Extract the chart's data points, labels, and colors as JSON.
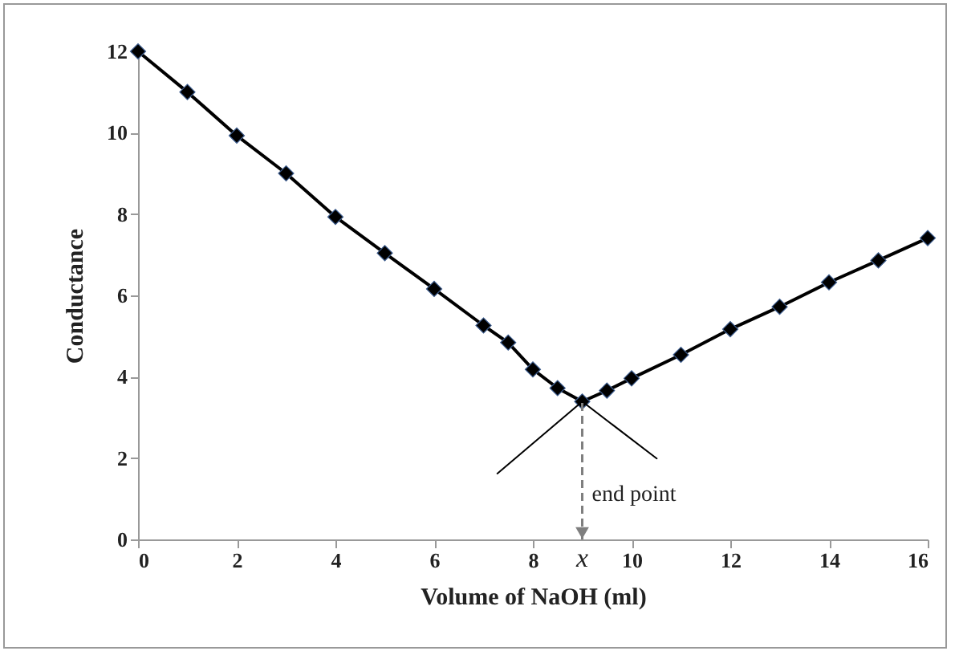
{
  "chart_data": {
    "type": "line",
    "xlabel": "Volume of NaOH (ml)",
    "ylabel": "Conductance",
    "xlim": [
      0,
      16
    ],
    "xticks": [
      0,
      2,
      4,
      6,
      8,
      10,
      12,
      14,
      16
    ],
    "ylim": [
      0,
      12
    ],
    "yticks": [
      0,
      2,
      4,
      6,
      8,
      10,
      12
    ],
    "grid": false,
    "series": [
      {
        "color": "#000000",
        "marker": "diamond",
        "x": [
          0,
          1,
          2,
          3,
          4,
          5,
          6,
          7,
          7.5,
          8,
          8.5,
          9,
          9.5,
          10,
          11,
          12,
          13,
          14,
          15,
          16
        ],
        "values": [
          12.0,
          11.0,
          9.93,
          9.0,
          7.93,
          7.04,
          6.16,
          5.26,
          4.84,
          4.18,
          3.72,
          3.39,
          3.66,
          3.96,
          4.54,
          5.17,
          5.72,
          6.32,
          6.86,
          7.41
        ]
      },
      {
        "color": "#000000",
        "marker": "none",
        "x": [
          7.28,
          9
        ],
        "values": [
          1.62,
          3.39
        ]
      },
      {
        "color": "#000000",
        "marker": "none",
        "x": [
          9,
          10.51
        ],
        "values": [
          3.39,
          1.99
        ]
      }
    ],
    "ref_lines": [
      {
        "axis": "x",
        "value": 9,
        "label": "end point",
        "color": "#7f7f7f",
        "line_style": "dashed"
      }
    ],
    "annotations": [
      "x"
    ]
  }
}
